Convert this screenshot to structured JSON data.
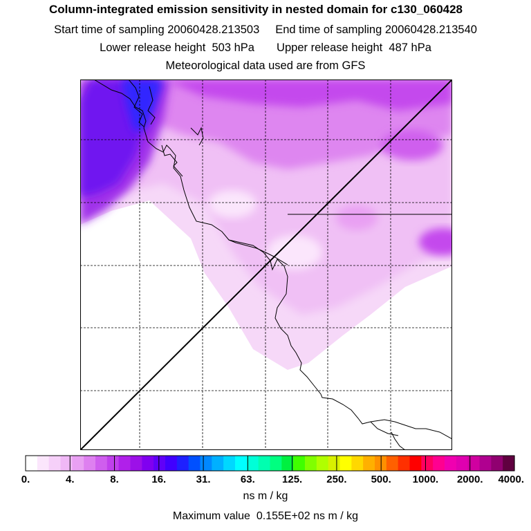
{
  "title": "Column-integrated emission sensitivity in nested domain for c130_060428",
  "sampling": {
    "start_label": "Start time of sampling",
    "start_value": "20060428.213503",
    "end_label": "End time of sampling",
    "end_value": "20060428.213540"
  },
  "release": {
    "lower_label": "Lower release height",
    "lower_value": "503 hPa",
    "upper_label": "Upper release height",
    "upper_value": "487 hPa"
  },
  "met_note": "Meteorological data used are from GFS",
  "colorbar": {
    "tick_labels": [
      "0.",
      "4.",
      "8.",
      "16.",
      "31.",
      "63.",
      "125.",
      "250.",
      "500.",
      "1000.",
      "2000.",
      "4000."
    ],
    "units": "ns m / kg",
    "colors": [
      "#ffffff",
      "#fbe6fc",
      "#f6d0f9",
      "#f0b8f6",
      "#e9a0f3",
      "#de80f0",
      "#cf5eee",
      "#c040ec",
      "#b020ea",
      "#9c10e8",
      "#8000f0",
      "#6000f8",
      "#4000ff",
      "#1e20ff",
      "#0050ff",
      "#0088ff",
      "#00b0ff",
      "#00d8ff",
      "#00ffff",
      "#00ffd8",
      "#00ffb0",
      "#00ff80",
      "#00f040",
      "#40ff00",
      "#80ff00",
      "#b0ff00",
      "#d8f000",
      "#ffff00",
      "#ffd800",
      "#ffb000",
      "#ff9000",
      "#ff6000",
      "#ff3000",
      "#ff0000",
      "#ff0060",
      "#ff0090",
      "#f000b0",
      "#e000b0",
      "#d000a0",
      "#b00090",
      "#900070",
      "#600040"
    ]
  },
  "max_value": {
    "label": "Maximum value",
    "value": "0.155E+02",
    "units": "ns m / kg"
  }
}
